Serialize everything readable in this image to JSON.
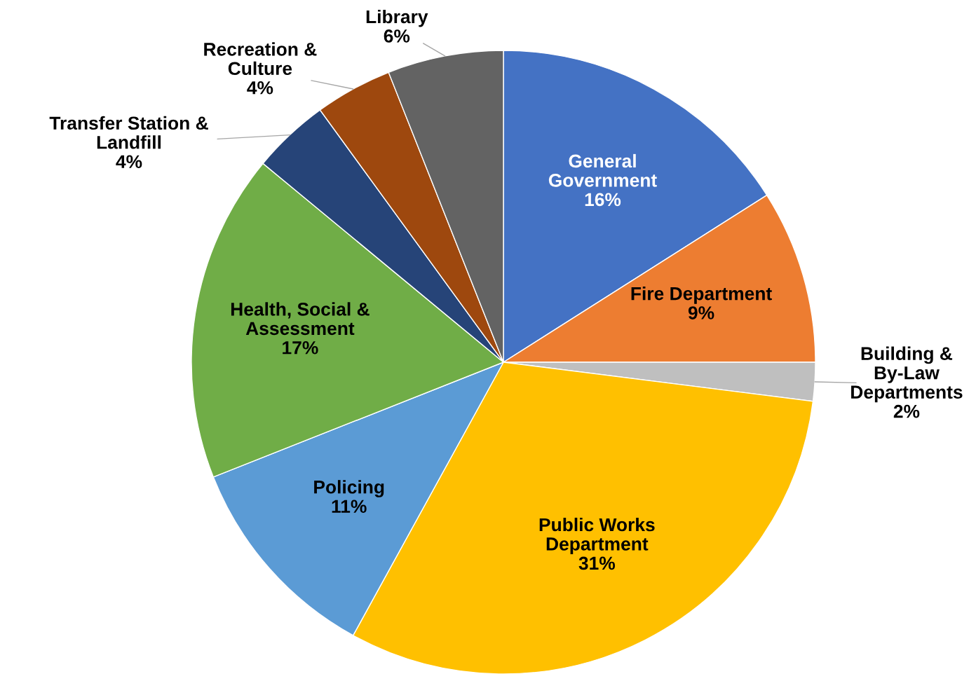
{
  "chart_data": {
    "type": "pie",
    "categories": [
      "General\nGovernment",
      "Fire Department",
      "Building &\nBy-Law\nDepartments",
      "Public Works\nDepartment",
      "Policing",
      "Health, Social &\nAssessment",
      "Transfer Station &\nLandfill",
      "Recreation &\nCulture",
      "Library"
    ],
    "values": [
      16,
      9,
      2,
      31,
      11,
      17,
      4,
      4,
      6
    ],
    "value_labels": [
      "16%",
      "9%",
      "2%",
      "31%",
      "11%",
      "17%",
      "4%",
      "4%",
      "6%"
    ],
    "colors": [
      "#4472c4",
      "#ed7d31",
      "#bfbfbf",
      "#ffc000",
      "#5b9bd5",
      "#70ad47",
      "#264478",
      "#9e480e",
      "#636363"
    ]
  }
}
